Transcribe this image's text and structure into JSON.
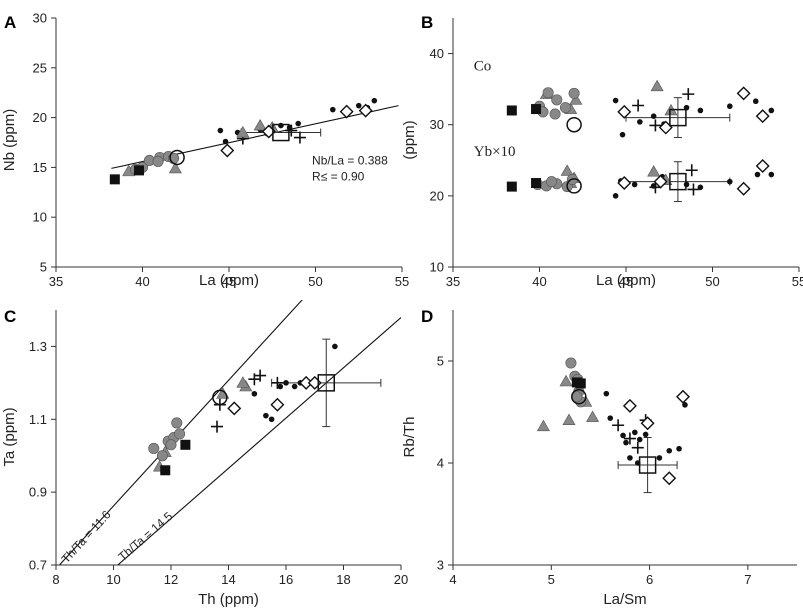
{
  "figure": {
    "panels": [
      "A",
      "B",
      "C",
      "D"
    ]
  },
  "colors": {
    "gray_marker": "#888888",
    "black_marker": "#111111",
    "axis": "#333333"
  },
  "chart_data": [
    {
      "id": "A",
      "type": "scatter",
      "title": "A",
      "xlabel": "La (ppm)",
      "ylabel": "Nb (ppm)",
      "xlim": [
        35,
        55
      ],
      "ylim": [
        5,
        30
      ],
      "xticks": [
        35,
        40,
        45,
        50,
        55
      ],
      "yticks": [
        5,
        10,
        15,
        20,
        25,
        30
      ],
      "annotations": [
        "Nb/La = 0.388",
        "R≤ = 0.90"
      ],
      "trendline": {
        "x1": 38.2,
        "y1": 14.9,
        "x2": 54.8,
        "y2": 21.2
      },
      "series": [
        {
          "name": "black squares",
          "marker": "square-filled",
          "points": [
            [
              38.4,
              13.8
            ],
            [
              39.8,
              14.7
            ]
          ]
        },
        {
          "name": "gray circles",
          "marker": "circle-gray",
          "points": [
            [
              39.6,
              14.8
            ],
            [
              40.0,
              15.0
            ],
            [
              40.4,
              15.7
            ],
            [
              41.0,
              16.0
            ],
            [
              41.5,
              16.1
            ],
            [
              41.8,
              15.9
            ],
            [
              40.9,
              15.6
            ]
          ]
        },
        {
          "name": "gray triangles",
          "marker": "triangle-gray",
          "points": [
            [
              39.2,
              14.6
            ],
            [
              41.9,
              14.9
            ],
            [
              46.8,
              19.2
            ],
            [
              47.5,
              19.0
            ],
            [
              45.8,
              18.5
            ]
          ]
        },
        {
          "name": "dots",
          "marker": "dot",
          "points": [
            [
              44.5,
              18.7
            ],
            [
              44.8,
              17.6
            ],
            [
              45.5,
              18.5
            ],
            [
              46.8,
              18.8
            ],
            [
              47.2,
              18.4
            ],
            [
              48.0,
              19.2
            ],
            [
              48.5,
              19.0
            ],
            [
              49.0,
              19.4
            ],
            [
              51.0,
              20.8
            ],
            [
              52.5,
              21.2
            ],
            [
              53.0,
              21.0
            ],
            [
              53.4,
              21.7
            ]
          ]
        },
        {
          "name": "crosses",
          "marker": "cross",
          "points": [
            [
              45.8,
              17.9
            ],
            [
              48.6,
              18.7
            ],
            [
              49.1,
              18.0
            ]
          ]
        },
        {
          "name": "open diamonds",
          "marker": "diamond-open",
          "points": [
            [
              44.9,
              16.7
            ],
            [
              47.3,
              18.6
            ],
            [
              51.8,
              20.6
            ],
            [
              52.9,
              20.7
            ]
          ]
        },
        {
          "name": "open circles",
          "marker": "circle-open",
          "points": [
            [
              42.0,
              16.0
            ]
          ]
        },
        {
          "name": "open squares",
          "marker": "square-open",
          "points": [
            [
              48.0,
              18.5
            ]
          ],
          "xerr": 2.3,
          "yerr": 0
        }
      ]
    },
    {
      "id": "B",
      "type": "scatter",
      "title": "B",
      "xlabel": "La (ppm)",
      "ylabel": "(ppm)",
      "xlim": [
        35,
        55
      ],
      "ylim": [
        10,
        45
      ],
      "xticks": [
        35,
        40,
        45,
        50,
        55
      ],
      "yticks": [
        10,
        20,
        30,
        40
      ],
      "labels": [
        "Co",
        "Yb×10"
      ],
      "series": [
        {
          "name": "black squares",
          "marker": "square-filled",
          "points": [
            [
              38.4,
              32.0
            ],
            [
              39.8,
              32.2
            ],
            [
              38.4,
              21.3
            ],
            [
              39.8,
              21.8
            ]
          ]
        },
        {
          "name": "gray circles",
          "marker": "circle-gray",
          "points": [
            [
              40.0,
              32.6
            ],
            [
              40.5,
              34.5
            ],
            [
              41.0,
              33.5
            ],
            [
              41.5,
              32.4
            ],
            [
              42.0,
              34.4
            ],
            [
              40.2,
              31.8
            ],
            [
              40.9,
              31.5
            ],
            [
              39.9,
              21.6
            ],
            [
              40.4,
              21.4
            ],
            [
              41.0,
              21.7
            ],
            [
              41.6,
              21.3
            ],
            [
              41.9,
              22.3
            ],
            [
              40.7,
              22.0
            ]
          ]
        },
        {
          "name": "gray triangles",
          "marker": "triangle-gray",
          "points": [
            [
              40.4,
              34.3
            ],
            [
              41.8,
              32.2
            ],
            [
              42.1,
              33.5
            ],
            [
              46.8,
              35.4
            ],
            [
              47.6,
              32.0
            ],
            [
              41.8,
              21.8
            ],
            [
              42.0,
              22.5
            ],
            [
              41.6,
              23.5
            ],
            [
              46.6,
              23.4
            ],
            [
              47.3,
              22.2
            ]
          ]
        },
        {
          "name": "dots",
          "marker": "dot",
          "points": [
            [
              44.4,
              33.4
            ],
            [
              44.8,
              28.6
            ],
            [
              45.8,
              30.4
            ],
            [
              46.6,
              31.2
            ],
            [
              47.2,
              30.1
            ],
            [
              48.5,
              32.4
            ],
            [
              49.3,
              32.0
            ],
            [
              51.0,
              32.6
            ],
            [
              52.5,
              33.3
            ],
            [
              53.4,
              32.0
            ],
            [
              44.4,
              20.0
            ],
            [
              44.7,
              22.1
            ],
            [
              45.5,
              21.6
            ],
            [
              46.6,
              21.4
            ],
            [
              47.1,
              22.7
            ],
            [
              48.5,
              21.6
            ],
            [
              49.3,
              21.2
            ],
            [
              51.0,
              22.0
            ],
            [
              52.6,
              23.0
            ],
            [
              53.4,
              23.0
            ]
          ]
        },
        {
          "name": "crosses",
          "marker": "cross",
          "points": [
            [
              45.7,
              32.7
            ],
            [
              46.7,
              29.9
            ],
            [
              48.6,
              34.3
            ],
            [
              46.7,
              21.2
            ],
            [
              48.8,
              23.6
            ],
            [
              48.9,
              20.9
            ]
          ]
        },
        {
          "name": "open diamonds",
          "marker": "diamond-open",
          "points": [
            [
              44.9,
              31.8
            ],
            [
              47.3,
              29.6
            ],
            [
              51.8,
              34.4
            ],
            [
              52.9,
              31.2
            ],
            [
              44.9,
              21.8
            ],
            [
              47.0,
              22.0
            ],
            [
              51.8,
              21.0
            ],
            [
              52.9,
              24.2
            ]
          ]
        },
        {
          "name": "open circles",
          "marker": "circle-open",
          "points": [
            [
              42.0,
              30.0
            ],
            [
              42.0,
              21.4
            ]
          ]
        },
        {
          "name": "open squares",
          "marker": "square-open",
          "points": [
            [
              48.0,
              31.0
            ],
            [
              48.0,
              22.0
            ]
          ],
          "xerr": 3.0,
          "yerr": 2.8
        }
      ]
    },
    {
      "id": "C",
      "type": "scatter",
      "title": "C",
      "xlabel": "Th (ppm)",
      "ylabel": "Ta (ppm)",
      "xlim": [
        8,
        20
      ],
      "ylim": [
        0.7,
        1.4
      ],
      "xticks": [
        8,
        10,
        12,
        14,
        16,
        18,
        20
      ],
      "yticks": [
        0.7,
        0.9,
        1.1,
        1.3
      ],
      "ytick_labels": [
        "0.7",
        "0.9",
        "1.1",
        "1.3"
      ],
      "ref_lines": [
        {
          "label": "Th/Ta = 11.6",
          "ratio": 11.6
        },
        {
          "label": "Th/Ta = 14.5",
          "ratio": 14.5
        }
      ],
      "series": [
        {
          "name": "black squares",
          "marker": "square-filled",
          "points": [
            [
              11.8,
              0.96
            ],
            [
              12.5,
              1.03
            ]
          ]
        },
        {
          "name": "gray circles",
          "marker": "circle-gray",
          "points": [
            [
              11.4,
              1.02
            ],
            [
              11.7,
              1.0
            ],
            [
              11.9,
              1.04
            ],
            [
              12.1,
              1.05
            ],
            [
              12.3,
              1.06
            ],
            [
              12.2,
              1.09
            ],
            [
              12.0,
              1.03
            ]
          ]
        },
        {
          "name": "gray triangles",
          "marker": "triangle-gray",
          "points": [
            [
              11.6,
              0.97
            ],
            [
              11.8,
              1.01
            ],
            [
              13.8,
              1.17
            ],
            [
              14.6,
              1.19
            ],
            [
              14.5,
              1.2
            ]
          ]
        },
        {
          "name": "dots",
          "marker": "dot",
          "points": [
            [
              14.9,
              1.17
            ],
            [
              15.3,
              1.11
            ],
            [
              15.5,
              1.1
            ],
            [
              15.8,
              1.19
            ],
            [
              16.0,
              1.2
            ],
            [
              16.3,
              1.19
            ],
            [
              16.5,
              1.2
            ],
            [
              17.7,
              1.3
            ]
          ]
        },
        {
          "name": "crosses",
          "marker": "cross",
          "points": [
            [
              13.6,
              1.08
            ],
            [
              13.7,
              1.14
            ],
            [
              14.9,
              1.21
            ],
            [
              15.1,
              1.22
            ],
            [
              15.7,
              1.2
            ]
          ]
        },
        {
          "name": "open diamonds",
          "marker": "diamond-open",
          "points": [
            [
              14.2,
              1.13
            ],
            [
              15.7,
              1.14
            ],
            [
              16.7,
              1.2
            ],
            [
              17.0,
              1.2
            ]
          ]
        },
        {
          "name": "open circles",
          "marker": "circle-open",
          "points": [
            [
              13.7,
              1.16
            ]
          ]
        },
        {
          "name": "open squares",
          "marker": "square-open",
          "points": [
            [
              17.4,
              1.2
            ]
          ],
          "xerr": 1.9,
          "yerr": 0.12
        }
      ]
    },
    {
      "id": "D",
      "type": "scatter",
      "title": "D",
      "xlabel": "La/Sm",
      "ylabel": "Rb/Th",
      "xlim": [
        4,
        7.5
      ],
      "ylim": [
        3,
        5.5
      ],
      "xticks": [
        4,
        5,
        6,
        7
      ],
      "yticks": [
        3,
        4,
        5
      ],
      "series": [
        {
          "name": "black squares",
          "marker": "square-filled",
          "points": [
            [
              5.26,
              4.79
            ],
            [
              5.3,
              4.78
            ]
          ]
        },
        {
          "name": "gray circles",
          "marker": "circle-gray",
          "points": [
            [
              5.2,
              4.98
            ],
            [
              5.24,
              4.85
            ],
            [
              5.27,
              4.82
            ],
            [
              5.28,
              4.7
            ],
            [
              5.3,
              4.6
            ],
            [
              5.26,
              4.65
            ]
          ]
        },
        {
          "name": "gray triangles",
          "marker": "triangle-gray",
          "points": [
            [
              4.92,
              4.36
            ],
            [
              5.15,
              4.8
            ],
            [
              5.18,
              4.42
            ],
            [
              5.35,
              4.6
            ],
            [
              5.42,
              4.45
            ]
          ]
        },
        {
          "name": "dots",
          "marker": "dot",
          "points": [
            [
              5.56,
              4.68
            ],
            [
              5.6,
              4.44
            ],
            [
              5.73,
              4.27
            ],
            [
              5.76,
              4.2
            ],
            [
              5.8,
              4.05
            ],
            [
              5.88,
              4.0
            ],
            [
              5.9,
              4.23
            ],
            [
              5.96,
              4.28
            ],
            [
              6.1,
              4.05
            ],
            [
              6.2,
              4.12
            ],
            [
              6.3,
              4.14
            ],
            [
              6.36,
              4.57
            ],
            [
              5.85,
              4.3
            ]
          ]
        },
        {
          "name": "crosses",
          "marker": "cross",
          "points": [
            [
              5.68,
              4.37
            ],
            [
              5.8,
              4.24
            ],
            [
              5.88,
              4.15
            ],
            [
              5.96,
              4.42
            ]
          ]
        },
        {
          "name": "open diamonds",
          "marker": "diamond-open",
          "points": [
            [
              5.8,
              4.56
            ],
            [
              5.98,
              4.39
            ],
            [
              6.2,
              3.85
            ],
            [
              6.34,
              4.65
            ]
          ]
        },
        {
          "name": "open circles",
          "marker": "circle-open",
          "points": [
            [
              5.28,
              4.65
            ]
          ]
        },
        {
          "name": "open squares",
          "marker": "square-open",
          "points": [
            [
              5.98,
              3.98
            ]
          ],
          "xerr": 0.3,
          "yerr": 0.27
        }
      ]
    }
  ]
}
